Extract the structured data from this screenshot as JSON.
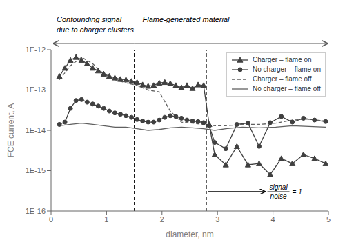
{
  "chart_data": {
    "type": "line",
    "x_label": "diameter, nm",
    "y_label": "FCE current, A",
    "log": "y",
    "legend": "upper right",
    "xlim": [
      0,
      5
    ],
    "xticks": [
      0,
      1,
      2,
      3,
      4,
      5
    ],
    "ylim": [
      1e-16,
      1e-12
    ],
    "yticks": [
      {
        "value": 1e-16,
        "label": "1E-16"
      },
      {
        "value": 1e-15,
        "label": "1E-15"
      },
      {
        "value": 1e-14,
        "label": "1E-14"
      },
      {
        "value": 1e-13,
        "label": "1E-13"
      },
      {
        "value": 1e-12,
        "label": "1E-12"
      }
    ],
    "vertical_lines": [
      1.5,
      2.8
    ],
    "annotations": {
      "left": [
        "Confounding signal",
        "due to charger clusters"
      ],
      "right": "Flame-generated material",
      "fraction": [
        "signal",
        "noise"
      ],
      "fraction_value": "= 1"
    },
    "series": [
      {
        "name": "Charger – flame on",
        "color": "#404040",
        "marker": "triangle",
        "line_style": "solid",
        "x": [
          0.15,
          0.25,
          0.35,
          0.45,
          0.55,
          0.65,
          0.75,
          0.85,
          0.95,
          1.05,
          1.15,
          1.25,
          1.35,
          1.45,
          1.55,
          1.65,
          1.75,
          1.85,
          1.95,
          2.05,
          2.15,
          2.25,
          2.35,
          2.45,
          2.55,
          2.65,
          2.75,
          2.85,
          2.95,
          3.15,
          3.35,
          3.55,
          3.75,
          3.95,
          4.15,
          4.35,
          4.55,
          4.75,
          4.95
        ],
        "values": [
          2.2e-13,
          3.5e-13,
          5.5e-13,
          6.5e-13,
          5.5e-13,
          4.5e-13,
          3.5e-13,
          3e-13,
          2.5e-13,
          2.2e-13,
          2e-13,
          1.85e-13,
          1.8e-13,
          1.65e-13,
          1.55e-13,
          1.35e-13,
          1.25e-13,
          1.3e-13,
          1.5e-13,
          1.55e-13,
          1.45e-13,
          1.3e-13,
          1.15e-13,
          1.3e-13,
          1.1e-13,
          1.35e-13,
          1.3e-13,
          1.4e-14,
          2.5e-15,
          1.4e-15,
          4e-15,
          1.4e-15,
          1.5e-15,
          8e-16,
          2e-15,
          1.5e-15,
          2.5e-15,
          2e-15,
          1.5e-15
        ]
      },
      {
        "name": "No charger – flame on",
        "color": "#404040",
        "marker": "circle",
        "line_style": "solid",
        "x": [
          0.15,
          0.25,
          0.35,
          0.45,
          0.55,
          0.65,
          0.75,
          0.85,
          0.95,
          1.05,
          1.15,
          1.25,
          1.35,
          1.45,
          1.55,
          1.65,
          1.75,
          1.85,
          1.95,
          2.05,
          2.15,
          2.25,
          2.35,
          2.45,
          2.55,
          2.65,
          2.75,
          2.85,
          2.95,
          3.15,
          3.35,
          3.55,
          3.75,
          3.95,
          4.15,
          4.35,
          4.55,
          4.75,
          4.95
        ],
        "values": [
          1.4e-14,
          1.6e-14,
          3.5e-14,
          5.5e-14,
          5.8e-14,
          5e-14,
          4.5e-14,
          4e-14,
          3.5e-14,
          3e-14,
          2.7e-14,
          2.5e-14,
          2.3e-14,
          2.1e-14,
          1.85e-14,
          1.7e-14,
          1.6e-14,
          1.6e-14,
          1.8e-14,
          2.1e-14,
          2.3e-14,
          2.2e-14,
          2e-14,
          1.8e-14,
          1.7e-14,
          1.65e-14,
          1.55e-14,
          1.3e-14,
          5e-15,
          3.5e-15,
          1.4e-14,
          1.5e-14,
          4e-15,
          1.55e-14,
          2.2e-14,
          1.6e-14,
          2e-14,
          1.8e-14,
          1.65e-14
        ]
      },
      {
        "name": "Charger – flame off",
        "color": "#606060",
        "marker": "none",
        "line_style": "dashed",
        "x": [
          0.15,
          0.35,
          0.55,
          0.75,
          0.95,
          1.15,
          1.35,
          1.55,
          1.75,
          1.95,
          2.15,
          2.35,
          2.55,
          2.75,
          2.95,
          3.15,
          3.45,
          3.75,
          4.05,
          4.35,
          4.65,
          4.95
        ],
        "values": [
          1.8e-13,
          4e-13,
          6.5e-13,
          4.5e-13,
          2.5e-13,
          1.8e-13,
          1.5e-13,
          1.3e-13,
          1e-13,
          9e-14,
          3e-14,
          1.6e-14,
          1.5e-14,
          1.4e-14,
          1.3e-14,
          1.3e-14,
          1.4e-14,
          1.4e-14,
          1.5e-14,
          1.8e-14,
          1.9e-14,
          1.7e-14
        ]
      },
      {
        "name": "No charger – flame off",
        "color": "#606060",
        "marker": "none",
        "line_style": "solid",
        "x": [
          0.15,
          0.35,
          0.55,
          0.75,
          0.95,
          1.15,
          1.35,
          1.55,
          1.75,
          1.95,
          2.15,
          2.35,
          2.55,
          2.75,
          2.95,
          3.15,
          3.45,
          3.75,
          4.05,
          4.35,
          4.65,
          4.95
        ],
        "values": [
          1.3e-14,
          1.4e-14,
          1.5e-14,
          1.4e-14,
          1.3e-14,
          1.2e-14,
          1.2e-14,
          1.1e-14,
          1e-14,
          1.05e-14,
          1.15e-14,
          1.2e-14,
          1.15e-14,
          1.1e-14,
          1e-14,
          1.1e-14,
          1.2e-14,
          1.15e-14,
          1.2e-14,
          1.3e-14,
          1.25e-14,
          1.2e-14
        ]
      }
    ]
  }
}
